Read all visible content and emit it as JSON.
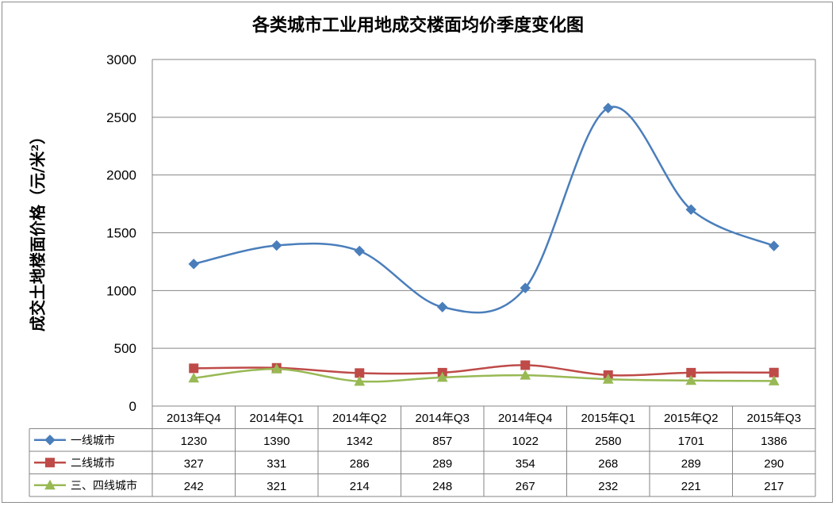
{
  "chart_data": {
    "type": "line",
    "title": "各类城市工业用地成交楼面均价季度变化图",
    "xlabel": "",
    "ylabel": "成交土地楼面价格（元/米²）",
    "ylim": [
      0,
      3000
    ],
    "yticks": [
      "0",
      "500",
      "1000",
      "1500",
      "2000",
      "2500",
      "3000"
    ],
    "grid": true,
    "smooth": true,
    "legend": "data-table-left",
    "categories": [
      "2013年Q4",
      "2014年Q1",
      "2014年Q2",
      "2014年Q3",
      "2014年Q4",
      "2015年Q1",
      "2015年Q2",
      "2015年Q3"
    ],
    "series": [
      {
        "name": "一线城市",
        "values": [
          1230,
          1390,
          1342,
          857,
          1022,
          2580,
          1701,
          1386
        ],
        "color": "#4a7ebb",
        "marker": "diamond"
      },
      {
        "name": "二线城市",
        "values": [
          327,
          331,
          286,
          289,
          354,
          268,
          289,
          290
        ],
        "color": "#be4b48",
        "marker": "square"
      },
      {
        "name": "三、四线城市",
        "values": [
          242,
          321,
          214,
          248,
          267,
          232,
          221,
          217
        ],
        "color": "#98b954",
        "marker": "triangle"
      }
    ]
  }
}
